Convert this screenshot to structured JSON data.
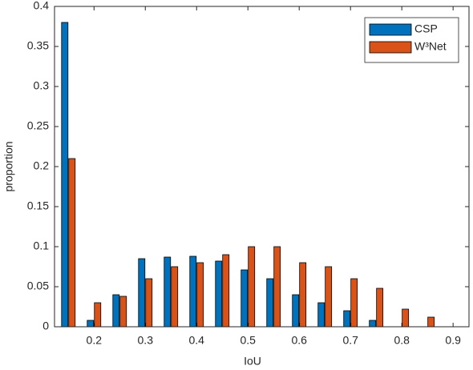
{
  "chart_data": {
    "type": "bar",
    "x_label": "IoU",
    "y_label": "proportion",
    "x": [
      0.15,
      0.2,
      0.25,
      0.3,
      0.35,
      0.4,
      0.45,
      0.5,
      0.55,
      0.6,
      0.65,
      0.7,
      0.75,
      0.8,
      0.85
    ],
    "series": [
      {
        "name": "CSP",
        "color": "#0072BD",
        "values": [
          0.38,
          0.008,
          0.04,
          0.085,
          0.087,
          0.088,
          0.082,
          0.071,
          0.06,
          0.04,
          0.03,
          0.02,
          0.008,
          0,
          0
        ]
      },
      {
        "name": "W³Net",
        "color": "#D95319",
        "values": [
          0.21,
          0.03,
          0.038,
          0.06,
          0.075,
          0.08,
          0.09,
          0.1,
          0.1,
          0.08,
          0.075,
          0.06,
          0.048,
          0.022,
          0.012
        ]
      }
    ],
    "xlim": [
      0.123,
      0.931
    ],
    "ylim": [
      0,
      0.4
    ],
    "xticks": [
      0.2,
      0.3,
      0.4,
      0.5,
      0.6,
      0.7,
      0.8,
      0.9
    ],
    "yticks": [
      0,
      0.05,
      0.1,
      0.15,
      0.2,
      0.25,
      0.3,
      0.35,
      0.4
    ],
    "legend": "northeast"
  }
}
